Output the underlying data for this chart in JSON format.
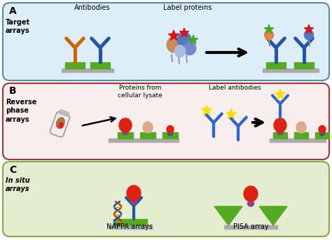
{
  "panel_A": {
    "label": "A",
    "title": "Target\narrays",
    "bg_color": "#ddeef8",
    "border_color": "#5588bb",
    "text_antibodies": "Antibodies",
    "text_label_proteins": "Label proteins"
  },
  "panel_B": {
    "label": "B",
    "title": "Reverse\nphase\narrays",
    "bg_color": "#f8eeee",
    "border_color": "#aa3333",
    "text_proteins": "Proteins from\ncellular lysate",
    "text_label_antibodies": "Label antibodies"
  },
  "panel_C": {
    "label": "C",
    "title": "In situ\narrays",
    "bg_color": "#e4edd0",
    "border_color": "#88aa44",
    "text_nappa": "NAPPA arrays",
    "text_pisa": "PISA array"
  },
  "colors": {
    "orange_antibody": "#cc6600",
    "blue_antibody": "#2255aa",
    "blue_antibody2": "#3366bb",
    "green_base": "#55aa22",
    "gray_platform": "#aaaaaa",
    "red_star": "#dd1111",
    "green_star": "#44aa22",
    "red_blob": "#dd2211",
    "peach_blob": "#ddaa88",
    "yellow_star": "#ffdd00",
    "purple_small": "#884488",
    "teal_small": "#226688",
    "orange_blob": "#dd8844",
    "blue_blob": "#5577bb"
  }
}
